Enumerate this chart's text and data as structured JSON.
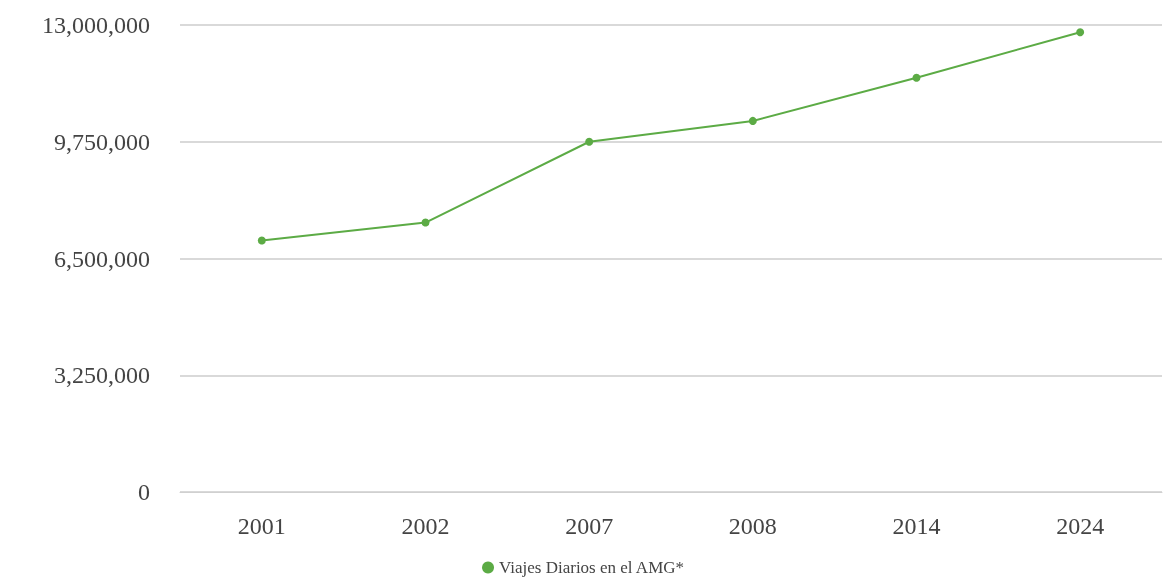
{
  "chart_data": {
    "type": "line",
    "categories": [
      "2001",
      "2002",
      "2007",
      "2008",
      "2014",
      "2024"
    ],
    "series": [
      {
        "name": "Viajes Diarios en el AMG*",
        "color": "#5cab45",
        "values": [
          7000000,
          7500000,
          9750000,
          10330000,
          11530000,
          12800000
        ]
      }
    ],
    "ylim": [
      0,
      13000000
    ],
    "yticks": [
      0,
      {
        "value": 3250000,
        "label": "3,250,000"
      },
      {
        "value": 6500000,
        "label": "6,500,000"
      },
      {
        "value": 9750000,
        "label": "9,750,000"
      },
      {
        "value": 13000000,
        "label": "13,000,000"
      }
    ],
    "grid": "y",
    "legend": "bottom",
    "marker": "circle",
    "line_style": "solid"
  }
}
